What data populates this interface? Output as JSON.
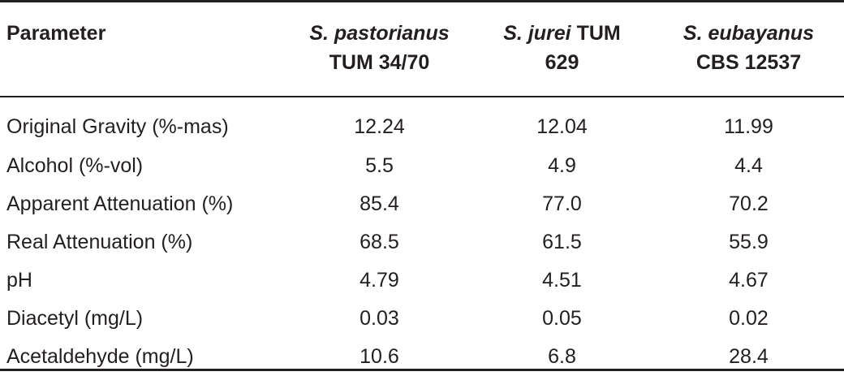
{
  "header": {
    "parameter": "Parameter",
    "strains": [
      {
        "italic": "S. pastorianus",
        "rest": "",
        "line2": "TUM 34/70"
      },
      {
        "italic": "S. jurei",
        "rest": " TUM",
        "line2": "629"
      },
      {
        "italic": "S. eubayanus",
        "rest": "",
        "line2": "CBS 12537"
      }
    ]
  },
  "rows": [
    {
      "parameter": "Original Gravity (%-mas)",
      "values": [
        "12.24",
        "12.04",
        "11.99"
      ]
    },
    {
      "parameter": "Alcohol (%-vol)",
      "values": [
        "5.5",
        "4.9",
        "4.4"
      ]
    },
    {
      "parameter": "Apparent Attenuation (%)",
      "values": [
        "85.4",
        "77.0",
        "70.2"
      ]
    },
    {
      "parameter": "Real Attenuation (%)",
      "values": [
        "68.5",
        "61.5",
        "55.9"
      ]
    },
    {
      "parameter": "pH",
      "values": [
        "4.79",
        "4.51",
        "4.67"
      ]
    },
    {
      "parameter": "Diacetyl (mg/L)",
      "values": [
        "0.03",
        "0.05",
        "0.02"
      ]
    },
    {
      "parameter": "Acetaldehyde (mg/L)",
      "values": [
        "10.6",
        "6.8",
        "28.4"
      ]
    }
  ]
}
